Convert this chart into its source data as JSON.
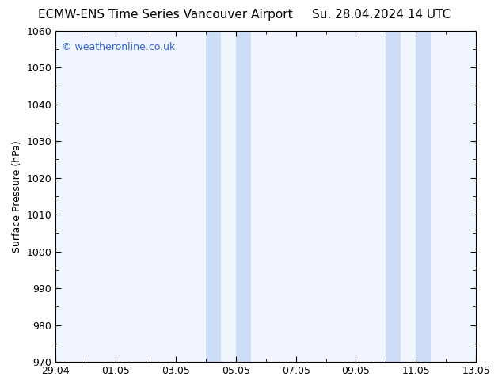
{
  "title_left": "ECMW-ENS Time Series Vancouver Airport",
  "title_right": "Su. 28.04.2024 14 UTC",
  "ylabel": "Surface Pressure (hPa)",
  "ylim": [
    970,
    1060
  ],
  "yticks": [
    970,
    980,
    990,
    1000,
    1010,
    1020,
    1030,
    1040,
    1050,
    1060
  ],
  "xtick_labels": [
    "29.04",
    "01.05",
    "03.05",
    "05.05",
    "07.05",
    "09.05",
    "11.05",
    "13.05"
  ],
  "xtick_positions": [
    0,
    2,
    4,
    6,
    8,
    10,
    12,
    14
  ],
  "x_total_days": 14,
  "background_color": "#ffffff",
  "plot_bg_color": "#f0f5ff",
  "shaded_bands": [
    {
      "x_start": 5.0,
      "x_end": 5.5
    },
    {
      "x_start": 6.0,
      "x_end": 6.5
    },
    {
      "x_start": 11.0,
      "x_end": 11.5
    },
    {
      "x_start": 12.0,
      "x_end": 12.5
    }
  ],
  "shaded_color": "#ccddf5",
  "watermark_text": "© weatheronline.co.uk",
  "watermark_color": "#3366cc",
  "watermark_fontsize": 9,
  "title_fontsize": 11,
  "axis_fontsize": 9,
  "ylabel_fontsize": 9
}
